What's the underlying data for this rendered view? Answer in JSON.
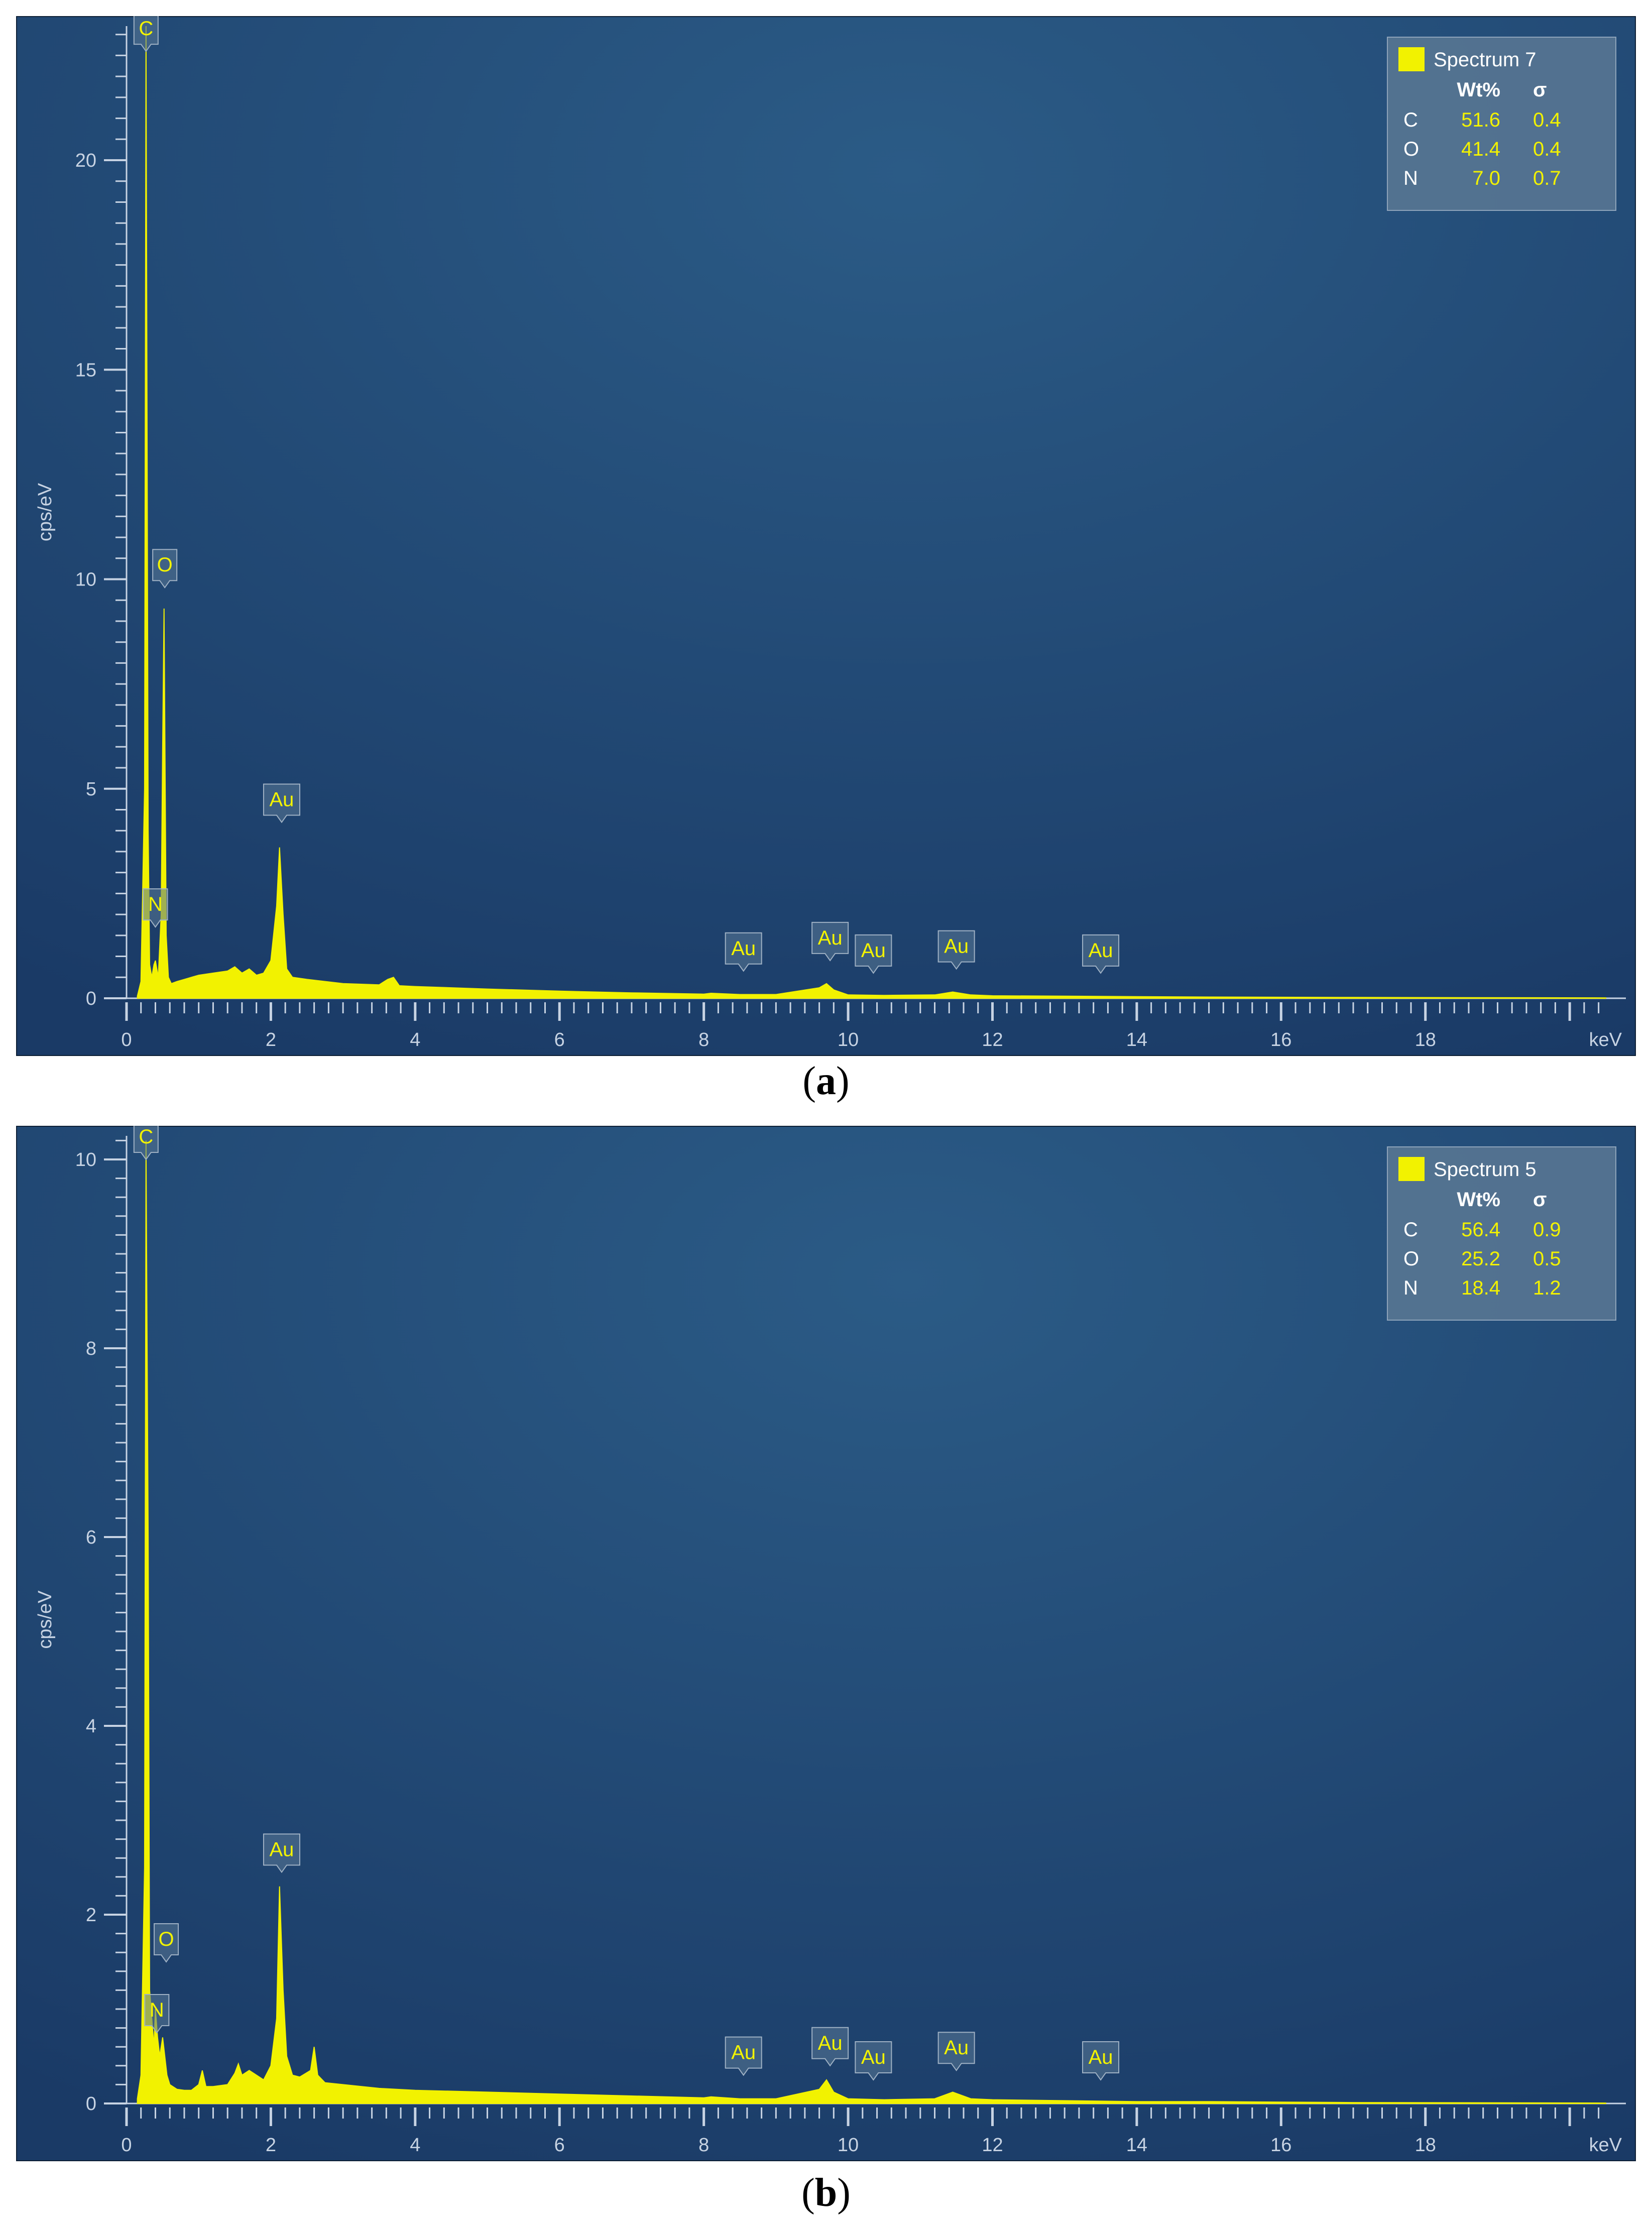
{
  "colors": {
    "background_top": "#2b5b86",
    "background_bottom": "#1a3a66",
    "spectrum": "#f2f200",
    "axis": "#c7d3e3",
    "legend_bg": "#5a7894"
  },
  "panels": [
    {
      "caption": {
        "open": "(",
        "letter": "a",
        "close": ")"
      },
      "legend": {
        "spectrum_name": "Spectrum 7",
        "header_wt": "Wt%",
        "header_sigma": "σ",
        "rows": [
          {
            "element": "C",
            "wt": "51.6",
            "sigma": "0.4"
          },
          {
            "element": "O",
            "wt": "41.4",
            "sigma": "0.4"
          },
          {
            "element": "N",
            "wt": "7.0",
            "sigma": "0.7"
          }
        ]
      }
    },
    {
      "caption": {
        "open": "(",
        "letter": "b",
        "close": ")"
      },
      "legend": {
        "spectrum_name": "Spectrum 5",
        "header_wt": "Wt%",
        "header_sigma": "σ",
        "rows": [
          {
            "element": "C",
            "wt": "56.4",
            "sigma": "0.9"
          },
          {
            "element": "O",
            "wt": "25.2",
            "sigma": "0.5"
          },
          {
            "element": "N",
            "wt": "18.4",
            "sigma": "1.2"
          }
        ]
      }
    }
  ],
  "chart_data": [
    {
      "type": "area",
      "xlabel": "keV",
      "ylabel": "cps/eV",
      "xlim": [
        0,
        20.5
      ],
      "ylim": [
        0,
        23.2
      ],
      "x_ticks": [
        0,
        2,
        4,
        6,
        8,
        10,
        12,
        14,
        16,
        18
      ],
      "y_ticks": [
        0,
        5,
        10,
        15,
        20
      ],
      "legend_position": "top-right",
      "series": [
        {
          "name": "Spectrum 7",
          "x": [
            0.15,
            0.2,
            0.25,
            0.27,
            0.3,
            0.32,
            0.35,
            0.38,
            0.4,
            0.44,
            0.48,
            0.5,
            0.52,
            0.55,
            0.58,
            0.62,
            0.7,
            0.8,
            1.0,
            1.2,
            1.4,
            1.5,
            1.6,
            1.7,
            1.8,
            1.9,
            2.0,
            2.08,
            2.12,
            2.17,
            2.22,
            2.3,
            2.5,
            3.0,
            3.5,
            3.62,
            3.7,
            3.78,
            4.0,
            5.0,
            6.0,
            7.0,
            8.0,
            8.1,
            8.5,
            9.0,
            9.6,
            9.7,
            9.8,
            10.0,
            10.5,
            11.2,
            11.45,
            11.7,
            12.0,
            13.0,
            14.0,
            15.0,
            17.0,
            20.5
          ],
          "y": [
            0.05,
            0.4,
            5.0,
            23.5,
            4.0,
            0.8,
            0.5,
            0.8,
            0.9,
            0.5,
            2.0,
            6.0,
            9.3,
            1.5,
            0.5,
            0.35,
            0.4,
            0.45,
            0.55,
            0.6,
            0.65,
            0.75,
            0.6,
            0.7,
            0.55,
            0.6,
            0.9,
            2.2,
            3.6,
            2.0,
            0.7,
            0.5,
            0.45,
            0.35,
            0.32,
            0.45,
            0.5,
            0.3,
            0.28,
            0.22,
            0.17,
            0.13,
            0.1,
            0.12,
            0.09,
            0.09,
            0.25,
            0.35,
            0.2,
            0.08,
            0.07,
            0.08,
            0.15,
            0.08,
            0.06,
            0.05,
            0.04,
            0.03,
            0.02,
            0.01
          ]
        }
      ],
      "peak_labels": [
        {
          "label": "C",
          "x": 0.27,
          "y": 22.6
        },
        {
          "label": "O",
          "x": 0.53,
          "y": 9.8
        },
        {
          "label": "N",
          "x": 0.4,
          "y": 1.7
        },
        {
          "label": "Au",
          "x": 2.15,
          "y": 4.2
        },
        {
          "label": "Au",
          "x": 8.55,
          "y": 0.65
        },
        {
          "label": "Au",
          "x": 9.75,
          "y": 0.9
        },
        {
          "label": "Au",
          "x": 10.35,
          "y": 0.6
        },
        {
          "label": "Au",
          "x": 11.5,
          "y": 0.7
        },
        {
          "label": "Au",
          "x": 13.5,
          "y": 0.6
        }
      ]
    },
    {
      "type": "area",
      "xlabel": "keV",
      "ylabel": "cps/eV",
      "xlim": [
        0,
        20.5
      ],
      "ylim": [
        0,
        10.25
      ],
      "x_ticks": [
        0,
        2,
        4,
        6,
        8,
        10,
        12,
        14,
        16,
        18
      ],
      "y_ticks": [
        0,
        2,
        4,
        6,
        8,
        10
      ],
      "legend_position": "top-right",
      "series": [
        {
          "name": "Spectrum 5",
          "x": [
            0.15,
            0.2,
            0.25,
            0.27,
            0.3,
            0.32,
            0.35,
            0.38,
            0.4,
            0.43,
            0.46,
            0.5,
            0.53,
            0.56,
            0.6,
            0.7,
            0.8,
            0.9,
            1.0,
            1.05,
            1.1,
            1.2,
            1.4,
            1.5,
            1.55,
            1.6,
            1.7,
            1.8,
            1.9,
            2.0,
            2.08,
            2.12,
            2.17,
            2.22,
            2.3,
            2.4,
            2.55,
            2.6,
            2.65,
            2.75,
            3.0,
            3.5,
            4.0,
            5.0,
            6.0,
            7.0,
            8.0,
            8.1,
            8.5,
            9.0,
            9.6,
            9.7,
            9.8,
            10.0,
            10.5,
            11.2,
            11.45,
            11.7,
            12.0,
            13.0,
            14.0,
            15.0,
            17.0,
            20.5
          ],
          "y": [
            0.05,
            0.3,
            2.5,
            10.2,
            6.0,
            1.2,
            0.9,
            0.6,
            1.0,
            0.7,
            0.5,
            0.7,
            0.5,
            0.3,
            0.2,
            0.15,
            0.14,
            0.14,
            0.2,
            0.35,
            0.18,
            0.18,
            0.2,
            0.32,
            0.42,
            0.3,
            0.35,
            0.3,
            0.25,
            0.4,
            0.9,
            2.3,
            1.2,
            0.5,
            0.3,
            0.28,
            0.35,
            0.6,
            0.3,
            0.22,
            0.2,
            0.16,
            0.14,
            0.12,
            0.1,
            0.08,
            0.06,
            0.07,
            0.05,
            0.05,
            0.15,
            0.25,
            0.12,
            0.05,
            0.04,
            0.05,
            0.12,
            0.05,
            0.04,
            0.03,
            0.02,
            0.02,
            0.01,
            0.005
          ]
        }
      ],
      "peak_labels": [
        {
          "label": "C",
          "x": 0.27,
          "y": 10.0
        },
        {
          "label": "O",
          "x": 0.55,
          "y": 1.5
        },
        {
          "label": "N",
          "x": 0.42,
          "y": 0.75
        },
        {
          "label": "Au",
          "x": 2.15,
          "y": 2.45
        },
        {
          "label": "Au",
          "x": 8.55,
          "y": 0.3
        },
        {
          "label": "Au",
          "x": 9.75,
          "y": 0.4
        },
        {
          "label": "Au",
          "x": 10.35,
          "y": 0.25
        },
        {
          "label": "Au",
          "x": 11.5,
          "y": 0.35
        },
        {
          "label": "Au",
          "x": 13.5,
          "y": 0.25
        }
      ]
    }
  ]
}
